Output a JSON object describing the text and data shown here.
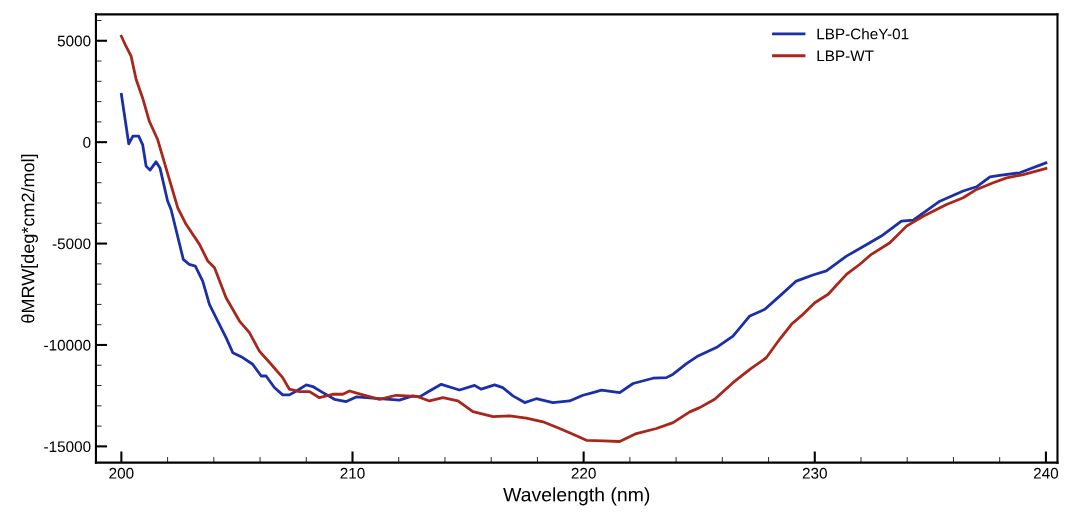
{
  "chart_data": {
    "type": "line",
    "xlabel": "Wavelength (nm)",
    "ylabel": "θMRW[deg*cm2/mol]",
    "xlim": [
      198.9,
      240.5
    ],
    "ylim": [
      -15800,
      6300
    ],
    "xticks": [
      200,
      210,
      220,
      230,
      240
    ],
    "yticks": [
      -15000,
      -10000,
      -5000,
      0,
      5000
    ],
    "grid": false,
    "legend": "top right",
    "marker": "none",
    "line_style": "solid",
    "series": [
      {
        "name": "LBP-CheY-01",
        "color": "#1a2fa8",
        "x": [
          200,
          200.32,
          200.5,
          200.75,
          200.92,
          201.07,
          201.24,
          201.5,
          201.67,
          202.0,
          202.15,
          202.68,
          202.94,
          203.2,
          203.52,
          203.81,
          204.17,
          204.53,
          204.82,
          205.25,
          205.68,
          206.05,
          206.26,
          206.62,
          206.98,
          207.27,
          207.63,
          208.0,
          208.28,
          208.72,
          209.22,
          209.73,
          210.16,
          210.6,
          211.17,
          212.03,
          212.6,
          212.9,
          213.33,
          213.84,
          214.63,
          215.28,
          215.57,
          216.15,
          216.5,
          216.94,
          217.45,
          217.95,
          218.67,
          219.39,
          219.97,
          220.4,
          220.77,
          221.56,
          222.14,
          223.0,
          223.58,
          223.87,
          224.45,
          224.95,
          225.74,
          226.46,
          227.19,
          227.84,
          228.48,
          229.2,
          229.92,
          230.5,
          231.37,
          232.38,
          232.88,
          233.75,
          234.26,
          235.41,
          236.42,
          237.0,
          237.58,
          238.0,
          238.87,
          240.0
        ],
        "values": [
          2360,
          -80,
          300,
          300,
          -120,
          -1180,
          -1380,
          -970,
          -1270,
          -2900,
          -3320,
          -5780,
          -6030,
          -6110,
          -6850,
          -8000,
          -8820,
          -9640,
          -10380,
          -10620,
          -10950,
          -11530,
          -11530,
          -12100,
          -12460,
          -12460,
          -12230,
          -11970,
          -12050,
          -12350,
          -12680,
          -12790,
          -12560,
          -12600,
          -12640,
          -12720,
          -12510,
          -12560,
          -12270,
          -11940,
          -12220,
          -11990,
          -12180,
          -11970,
          -12100,
          -12510,
          -12840,
          -12650,
          -12840,
          -12760,
          -12480,
          -12350,
          -12230,
          -12350,
          -11900,
          -11640,
          -11610,
          -11440,
          -10920,
          -10540,
          -10130,
          -9560,
          -8570,
          -8240,
          -7590,
          -6850,
          -6550,
          -6350,
          -5620,
          -4960,
          -4630,
          -3890,
          -3840,
          -2910,
          -2410,
          -2200,
          -1710,
          -1640,
          -1510,
          -1020
        ]
      },
      {
        "name": "LBP-WT",
        "color": "#a8261a",
        "x": [
          200,
          200.2,
          200.42,
          200.64,
          200.92,
          201.21,
          201.57,
          201.93,
          202.44,
          202.8,
          203.38,
          203.74,
          204.03,
          204.53,
          205.11,
          205.54,
          205.97,
          206.48,
          206.98,
          207.27,
          207.71,
          208.14,
          208.57,
          209.15,
          209.58,
          209.87,
          210.45,
          211.17,
          211.89,
          212.32,
          212.83,
          213.33,
          213.91,
          214.56,
          215.21,
          216.08,
          216.8,
          217.52,
          218.24,
          218.96,
          219.54,
          220.12,
          220.84,
          221.56,
          222.28,
          223.15,
          223.87,
          224.59,
          225.02,
          225.67,
          226.46,
          227.19,
          227.9,
          228.48,
          228.99,
          229.49,
          230.0,
          230.58,
          231.37,
          231.95,
          232.45,
          233.25,
          233.97,
          234.69,
          235.7,
          236.42,
          237.0,
          237.72,
          238.3,
          239.02,
          240.0
        ],
        "values": [
          5220,
          4730,
          4240,
          3090,
          2180,
          1030,
          130,
          -1270,
          -3240,
          -4050,
          -5040,
          -5860,
          -6190,
          -7670,
          -8820,
          -9390,
          -10300,
          -10950,
          -11610,
          -12180,
          -12300,
          -12300,
          -12600,
          -12430,
          -12430,
          -12270,
          -12460,
          -12680,
          -12480,
          -12510,
          -12550,
          -12760,
          -12600,
          -12760,
          -13290,
          -13530,
          -13500,
          -13610,
          -13790,
          -14120,
          -14400,
          -14700,
          -14730,
          -14760,
          -14370,
          -14120,
          -13830,
          -13300,
          -13090,
          -12680,
          -11860,
          -11200,
          -10630,
          -9720,
          -8980,
          -8490,
          -7920,
          -7500,
          -6520,
          -6020,
          -5530,
          -4960,
          -4140,
          -3650,
          -3070,
          -2740,
          -2330,
          -2000,
          -1760,
          -1600,
          -1300
        ]
      }
    ]
  }
}
